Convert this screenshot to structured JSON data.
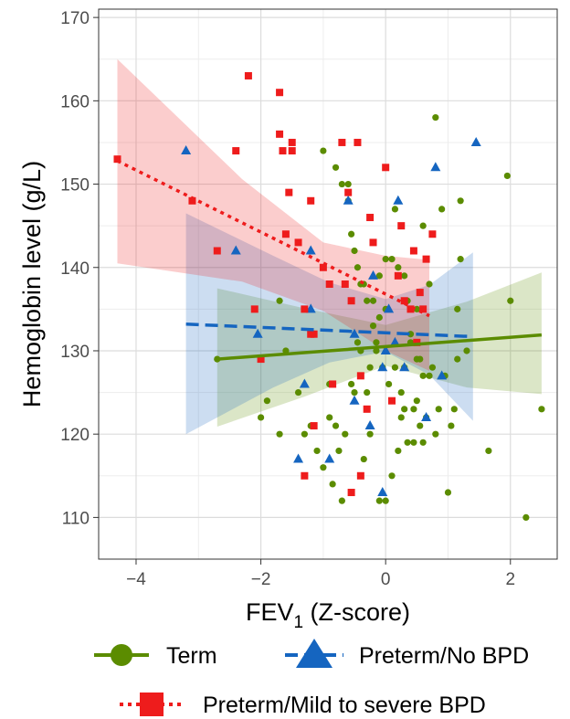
{
  "chart_data": {
    "type": "scatter",
    "xlabel": "FEV",
    "xlabel_sub": "1",
    "xlabel_suffix": " (Z-score)",
    "ylabel": "Hemoglobin level (g/L)",
    "xlim": [
      -4.6,
      2.75
    ],
    "ylim": [
      105,
      171
    ],
    "x_ticks": [
      -4,
      -2,
      0,
      2
    ],
    "x_tick_labels": [
      "−4",
      "−2",
      "0",
      "2"
    ],
    "y_ticks": [
      110,
      120,
      130,
      140,
      150,
      160,
      170
    ],
    "grid": true,
    "legend_position": "bottom",
    "series": [
      {
        "name": "Term",
        "color": "#5b8c00",
        "marker": "circle",
        "line_style": "solid",
        "fit": {
          "x": [
            -2.7,
            2.5
          ],
          "y": [
            129.0,
            131.9
          ]
        },
        "band": {
          "x": [
            -2.7,
            -1.3,
            0,
            1.3,
            2.5
          ],
          "upper": [
            137.5,
            135.1,
            133.1,
            135.9,
            139.4
          ],
          "lower": [
            120.9,
            124.5,
            128.2,
            125.6,
            124.8
          ]
        },
        "points": [
          [
            -2.7,
            129
          ],
          [
            -2.0,
            122
          ],
          [
            -1.9,
            124
          ],
          [
            -1.7,
            120
          ],
          [
            -1.6,
            130
          ],
          [
            -1.7,
            136
          ],
          [
            -1.4,
            125
          ],
          [
            -1.3,
            120
          ],
          [
            -1.2,
            121
          ],
          [
            -1.1,
            118
          ],
          [
            -1.0,
            116
          ],
          [
            -0.9,
            122
          ],
          [
            -0.85,
            114
          ],
          [
            -0.8,
            121
          ],
          [
            -0.75,
            118
          ],
          [
            -0.7,
            112
          ],
          [
            -0.65,
            120
          ],
          [
            -0.55,
            126
          ],
          [
            -0.5,
            125
          ],
          [
            -0.45,
            131
          ],
          [
            -0.4,
            130
          ],
          [
            -0.35,
            117
          ],
          [
            -0.3,
            125
          ],
          [
            -0.25,
            128
          ],
          [
            -0.2,
            133
          ],
          [
            -0.15,
            131
          ],
          [
            -0.1,
            112
          ],
          [
            -0.05,
            128
          ],
          [
            0.0,
            135
          ],
          [
            0.05,
            126
          ],
          [
            0.1,
            115
          ],
          [
            0.15,
            128
          ],
          [
            0.2,
            118
          ],
          [
            0.25,
            125
          ],
          [
            0.3,
            123
          ],
          [
            0.35,
            119
          ],
          [
            0.4,
            131
          ],
          [
            0.45,
            123
          ],
          [
            0.5,
            124
          ],
          [
            0.5,
            135
          ],
          [
            0.55,
            121
          ],
          [
            0.6,
            119
          ],
          [
            0.65,
            122
          ],
          [
            0.7,
            127
          ],
          [
            0.75,
            128
          ],
          [
            0.8,
            120
          ],
          [
            0.85,
            123
          ],
          [
            0.9,
            147
          ],
          [
            1.0,
            113
          ],
          [
            1.05,
            121
          ],
          [
            1.1,
            123
          ],
          [
            1.15,
            129
          ],
          [
            1.2,
            141
          ],
          [
            1.3,
            130
          ],
          [
            -0.8,
            152
          ],
          [
            -0.7,
            150
          ],
          [
            -0.6,
            150
          ],
          [
            -0.55,
            144
          ],
          [
            -0.45,
            140
          ],
          [
            -0.4,
            138
          ],
          [
            -0.35,
            138
          ],
          [
            -0.3,
            136
          ],
          [
            -0.2,
            136
          ],
          [
            -0.1,
            139
          ],
          [
            0.0,
            141
          ],
          [
            0.1,
            141
          ],
          [
            0.2,
            140
          ],
          [
            0.3,
            139
          ],
          [
            0.4,
            132
          ],
          [
            0.5,
            129
          ],
          [
            0.6,
            145
          ],
          [
            0.7,
            138
          ],
          [
            -1.0,
            154
          ],
          [
            -0.6,
            148
          ],
          [
            -0.5,
            142
          ],
          [
            -0.1,
            134
          ],
          [
            0.15,
            147
          ],
          [
            0.8,
            158
          ],
          [
            1.2,
            148
          ],
          [
            1.95,
            151
          ],
          [
            2.0,
            136
          ],
          [
            1.65,
            118
          ],
          [
            2.5,
            123
          ],
          [
            2.25,
            110
          ],
          [
            0.0,
            112
          ],
          [
            0.3,
            128
          ],
          [
            0.6,
            127
          ],
          [
            0.45,
            119
          ],
          [
            -0.25,
            120
          ],
          [
            0.55,
            129
          ],
          [
            -0.9,
            126
          ],
          [
            -0.15,
            130
          ],
          [
            0.25,
            122
          ],
          [
            0.95,
            127
          ],
          [
            1.15,
            135
          ],
          [
            0.35,
            136
          ]
        ]
      },
      {
        "name": "Preterm/No BPD",
        "color": "#1565c0",
        "marker": "triangle",
        "line_style": "dashed",
        "fit": {
          "x": [
            -3.2,
            1.4
          ],
          "y": [
            133.2,
            131.7
          ]
        },
        "band": {
          "x": [
            -3.2,
            -1.8,
            -0.9,
            0,
            0.7,
            1.4
          ],
          "upper": [
            146.5,
            141.4,
            138.2,
            136.2,
            137.9,
            141.8
          ],
          "lower": [
            120.0,
            125.6,
            128.6,
            129.9,
            127.1,
            121.6
          ]
        },
        "points": [
          [
            -3.2,
            154
          ],
          [
            -2.4,
            142
          ],
          [
            -2.05,
            132
          ],
          [
            -1.3,
            126
          ],
          [
            -1.2,
            135
          ],
          [
            -1.2,
            142
          ],
          [
            -1.4,
            117
          ],
          [
            -0.9,
            117
          ],
          [
            -0.6,
            148
          ],
          [
            -0.5,
            124
          ],
          [
            -0.25,
            121
          ],
          [
            -0.2,
            139
          ],
          [
            -0.05,
            113
          ],
          [
            -0.05,
            128
          ],
          [
            0.0,
            130
          ],
          [
            0.05,
            135
          ],
          [
            0.15,
            131
          ],
          [
            0.2,
            148
          ],
          [
            0.3,
            128
          ],
          [
            0.65,
            122
          ],
          [
            0.8,
            152
          ],
          [
            1.45,
            155
          ],
          [
            0.9,
            127
          ],
          [
            -0.5,
            132
          ]
        ]
      },
      {
        "name": "Preterm/Mild to severe BPD",
        "color": "#ee1c1c",
        "marker": "square",
        "line_style": "dotted",
        "fit": {
          "x": [
            -4.3,
            0.7
          ],
          "y": [
            152.8,
            134.2
          ]
        },
        "band": {
          "x": [
            -4.3,
            -2.3,
            -1.0,
            0,
            0.7
          ],
          "upper": [
            165.0,
            150.6,
            143.0,
            141.4,
            140.9
          ],
          "lower": [
            140.5,
            138.3,
            134.8,
            130.0,
            127.6
          ]
        },
        "points": [
          [
            -4.3,
            153
          ],
          [
            -3.1,
            148
          ],
          [
            -2.7,
            142
          ],
          [
            -2.2,
            163
          ],
          [
            -2.4,
            154
          ],
          [
            -2.1,
            135
          ],
          [
            -2.0,
            129
          ],
          [
            -1.7,
            161
          ],
          [
            -1.7,
            156
          ],
          [
            -1.65,
            154
          ],
          [
            -1.5,
            155
          ],
          [
            -1.5,
            154
          ],
          [
            -1.4,
            143
          ],
          [
            -1.55,
            149
          ],
          [
            -1.6,
            144
          ],
          [
            -1.3,
            135
          ],
          [
            -1.2,
            132
          ],
          [
            -1.15,
            121
          ],
          [
            -1.2,
            148
          ],
          [
            -1.0,
            140
          ],
          [
            -0.9,
            138
          ],
          [
            -0.7,
            155
          ],
          [
            -0.65,
            138
          ],
          [
            -0.6,
            149
          ],
          [
            -0.55,
            136
          ],
          [
            -0.45,
            155
          ],
          [
            -0.4,
            127
          ],
          [
            -0.3,
            123
          ],
          [
            -0.2,
            143
          ],
          [
            0.0,
            152
          ],
          [
            0.1,
            124
          ],
          [
            0.2,
            139
          ],
          [
            0.25,
            145
          ],
          [
            0.3,
            136
          ],
          [
            0.45,
            142
          ],
          [
            0.5,
            131
          ],
          [
            0.55,
            137
          ],
          [
            0.6,
            135
          ],
          [
            0.75,
            144
          ],
          [
            0.65,
            141
          ],
          [
            -1.3,
            115
          ],
          [
            -0.85,
            126
          ],
          [
            -0.55,
            113
          ],
          [
            -0.4,
            115
          ],
          [
            -1.15,
            132
          ],
          [
            -0.25,
            146
          ],
          [
            0.4,
            135
          ]
        ]
      }
    ]
  },
  "legend": {
    "items": [
      {
        "label": "Term",
        "icon": "green-circle-icon"
      },
      {
        "label": "Preterm/No BPD",
        "icon": "blue-triangle-icon"
      },
      {
        "label": "Preterm/Mild to severe BPD",
        "icon": "red-square-icon"
      }
    ]
  }
}
